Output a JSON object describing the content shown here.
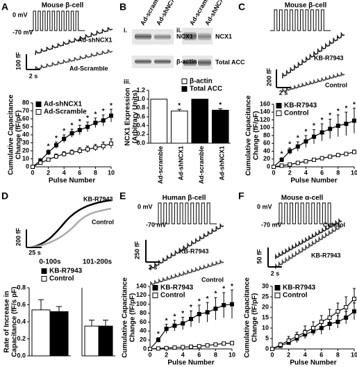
{
  "panels": {
    "A": {
      "letter": "A",
      "title": "Mouse β-cell",
      "voltage": [
        "0 mV",
        "-70 mV"
      ],
      "traces": [
        "Ad-shNCX1",
        "Ad-Scramble"
      ],
      "scale": [
        "100 fF",
        "2 s"
      ]
    },
    "B": {
      "letter": "B",
      "sub": [
        "i.",
        "ii.",
        "iii."
      ],
      "blot_i": {
        "columns": [
          "Ad-scramble",
          "Ad-shNCX1"
        ],
        "rows": [
          "NCX1",
          "β-actin"
        ]
      },
      "blot_ii": {
        "columns": [
          "Ad-scramble",
          "Ad-shNCX1"
        ],
        "rows": [
          "NCX1",
          "Total ACC"
        ]
      }
    },
    "C": {
      "letter": "C",
      "title": "Mouse β-cell",
      "traces": [
        "KB-R7943",
        "Control"
      ],
      "scale": [
        "200 fF",
        "2 s"
      ]
    },
    "D": {
      "letter": "D",
      "traces": [
        "KB-R7943",
        "Control"
      ],
      "scale": [
        "200 fF",
        "25 s"
      ]
    },
    "E": {
      "letter": "E",
      "title": "Human β-cell",
      "voltage": [
        "0 mV",
        "-70 mV"
      ],
      "traces": [
        "KB-R7943",
        "Control"
      ],
      "scale": [
        "250 fF",
        "2 s"
      ]
    },
    "F": {
      "letter": "F",
      "title": "Mouse α-cell",
      "voltage": [
        "0 mV",
        "-70 mV"
      ],
      "traces": [
        "Control",
        "KB-R7943"
      ],
      "scale": [
        "50 fF",
        "2 s"
      ]
    }
  },
  "chart_data": [
    {
      "type": "line",
      "ylabel": [
        "Cumulative Capacitance",
        "Change (fF/pF)"
      ],
      "xlabel": "Pulse Number",
      "x": [
        0,
        1,
        2,
        3,
        4,
        5,
        6,
        7,
        8,
        9,
        10
      ],
      "xlim": [
        0,
        10
      ],
      "xticks": [
        0,
        2,
        4,
        6,
        8,
        10
      ],
      "ylim": [
        0,
        80
      ],
      "yticks": [
        0,
        10,
        20,
        30,
        40,
        50,
        60,
        70,
        80
      ],
      "series": [
        {
          "name": "Ad-shNCX1",
          "color": "#000000",
          "fill": "#000000",
          "values": [
            0,
            8,
            18,
            27,
            35,
            42,
            46,
            50,
            55,
            58,
            64
          ],
          "errors": [
            0,
            2,
            3,
            4,
            5,
            5,
            6,
            6,
            6,
            7,
            8
          ]
        },
        {
          "name": "Ad-Scramble",
          "color": "#000000",
          "fill": "#ffffff",
          "values": [
            0,
            5,
            9,
            13,
            16,
            18,
            20,
            22,
            24,
            26,
            29
          ],
          "errors": [
            0,
            2,
            2,
            3,
            3,
            3,
            4,
            4,
            4,
            5,
            6
          ]
        }
      ],
      "stars": {
        "label": "*",
        "at": [
          2,
          3,
          4,
          5,
          6,
          7,
          8,
          9,
          10
        ]
      }
    },
    {
      "type": "bar",
      "ylabel": [
        "NCX1 Expression",
        "(Arbitrary Units)"
      ],
      "categories": [
        "Ad-scramble",
        "Ad-shNCX1",
        "Ad-scramble",
        "Ad-shNCX1"
      ],
      "ylim": [
        0,
        1.2
      ],
      "yticks": [
        {
          "value": 0,
          "label": "0.0"
        },
        {
          "value": 0.2,
          "label": "0.2"
        },
        {
          "value": 0.4,
          "label": "0.4"
        },
        {
          "value": 0.6,
          "label": "0.6"
        },
        {
          "value": 0.8,
          "label": "0.8"
        },
        {
          "value": 1.0,
          "label": "1.0"
        },
        {
          "value": 1.2,
          "label": "1.2"
        }
      ],
      "series": [
        {
          "name": "β-actin",
          "color": "#ffffff",
          "values": [
            1.0,
            0.73,
            null,
            null
          ],
          "errors": [
            null,
            0.04,
            null,
            null
          ]
        },
        {
          "name": "Total ACC",
          "color": "#000000",
          "values": [
            null,
            null,
            1.0,
            0.75
          ],
          "errors": [
            null,
            null,
            null,
            0.03
          ]
        }
      ],
      "stars": {
        "label": "*",
        "at": [
          1,
          3
        ]
      }
    },
    {
      "type": "line",
      "ylabel": [
        "Cumulative Capacitance",
        "Change (fF/pF)"
      ],
      "xlabel": "Pulse Number",
      "x": [
        0,
        1,
        2,
        3,
        4,
        5,
        6,
        7,
        8,
        9,
        10
      ],
      "xlim": [
        0,
        10
      ],
      "xticks": [
        0,
        2,
        4,
        6,
        8,
        10
      ],
      "ylim": [
        0,
        160
      ],
      "yticks": [
        0,
        20,
        40,
        60,
        80,
        100,
        120,
        140,
        160
      ],
      "series": [
        {
          "name": "KB-R7943",
          "color": "#000000",
          "fill": "#000000",
          "values": [
            0,
            18,
            40,
            52,
            65,
            77,
            88,
            97,
            105,
            110,
            118
          ],
          "errors": [
            0,
            5,
            8,
            12,
            15,
            18,
            22,
            25,
            28,
            30,
            32
          ]
        },
        {
          "name": "Control",
          "color": "#000000",
          "fill": "#ffffff",
          "values": [
            0,
            3,
            6,
            10,
            14,
            18,
            22,
            26,
            30,
            33,
            38
          ],
          "errors": [
            0,
            1,
            2,
            2,
            3,
            3,
            3,
            4,
            4,
            4,
            5
          ]
        }
      ],
      "stars": {
        "label": "*",
        "at": [
          1,
          2,
          3,
          4,
          5,
          6,
          7,
          8,
          9,
          10
        ]
      }
    },
    {
      "type": "bar",
      "title": "0-100s",
      "ylabel": [
        "Rate of Increase in",
        "Capacitance (fF/s pF)"
      ],
      "ylim": [
        0,
        0.8
      ],
      "yticks": [
        {
          "value": 0,
          "label": "0.0"
        },
        {
          "value": 0.2,
          "label": "0.2"
        },
        {
          "value": 0.4,
          "label": "0.4"
        },
        {
          "value": 0.6,
          "label": "0.6"
        },
        {
          "value": 0.8,
          "label": "0.8"
        }
      ],
      "series": [
        {
          "name": "KB-R7943",
          "color": "#000000",
          "values": [
            0.52
          ],
          "errors": [
            0.06
          ]
        },
        {
          "name": "Control",
          "color": "#ffffff",
          "values": [
            0.54
          ],
          "errors": [
            0.12
          ]
        }
      ]
    },
    {
      "type": "bar",
      "title": "101-200s",
      "ylim": [
        0,
        0.8
      ],
      "series": [
        {
          "color": "#000000",
          "values": [
            0.35
          ],
          "errors": [
            0.07
          ]
        },
        {
          "color": "#ffffff",
          "values": [
            0.35
          ],
          "errors": [
            0.07
          ]
        }
      ]
    },
    {
      "type": "line",
      "ylabel": [
        "Cumulative Capacitance",
        "Change (fF/pF)"
      ],
      "xlabel": "Pulse Number",
      "x": [
        0,
        1,
        2,
        3,
        4,
        5,
        6,
        7,
        8,
        9,
        10
      ],
      "xlim": [
        0,
        10
      ],
      "xticks": [
        0,
        2,
        4,
        6,
        8,
        10
      ],
      "ylim": [
        0,
        140
      ],
      "yticks": [
        0,
        20,
        40,
        60,
        80,
        100,
        120,
        140
      ],
      "series": [
        {
          "name": "KB-R7943",
          "color": "#000000",
          "fill": "#000000",
          "values": [
            0,
            20,
            45,
            52,
            57,
            67,
            78,
            82,
            90,
            98,
            100
          ],
          "errors": [
            0,
            5,
            10,
            12,
            14,
            18,
            20,
            22,
            25,
            28,
            32
          ]
        },
        {
          "name": "Control",
          "color": "#000000",
          "fill": "#ffffff",
          "values": [
            0,
            1,
            2,
            3,
            4,
            5,
            6,
            8,
            10,
            12,
            13
          ],
          "errors": [
            0,
            1,
            1,
            1,
            1,
            2,
            2,
            2,
            3,
            3,
            4
          ]
        }
      ],
      "stars": {
        "label": "*",
        "at": [
          1,
          2,
          3,
          4,
          5,
          6,
          7,
          8,
          9,
          10
        ]
      }
    },
    {
      "type": "line",
      "ylabel": [
        "Cumulative Capacitance",
        "Change (fF/pF)"
      ],
      "xlabel": "Pulse Number",
      "x": [
        0,
        1,
        2,
        3,
        4,
        5,
        6,
        7,
        8,
        9,
        10
      ],
      "xlim": [
        0,
        10
      ],
      "xticks": [
        0,
        2,
        4,
        6,
        8,
        10
      ],
      "ylim": [
        0,
        30
      ],
      "yticks": [
        0,
        5,
        10,
        15,
        20,
        25,
        30
      ],
      "series": [
        {
          "name": "KB-R7943",
          "color": "#000000",
          "fill": "#000000",
          "values": [
            0,
            1.5,
            3,
            5,
            7,
            8.5,
            10,
            12,
            13,
            15,
            18
          ],
          "errors": [
            0,
            1,
            1,
            2,
            2,
            2,
            3,
            3,
            3,
            3,
            4
          ]
        },
        {
          "name": "Control",
          "color": "#000000",
          "fill": "#ffffff",
          "values": [
            0,
            2,
            4,
            6,
            8,
            10,
            13,
            15,
            18,
            20,
            24
          ],
          "errors": [
            0,
            1,
            2,
            2,
            3,
            3,
            3,
            4,
            4,
            5,
            5
          ]
        }
      ]
    }
  ]
}
